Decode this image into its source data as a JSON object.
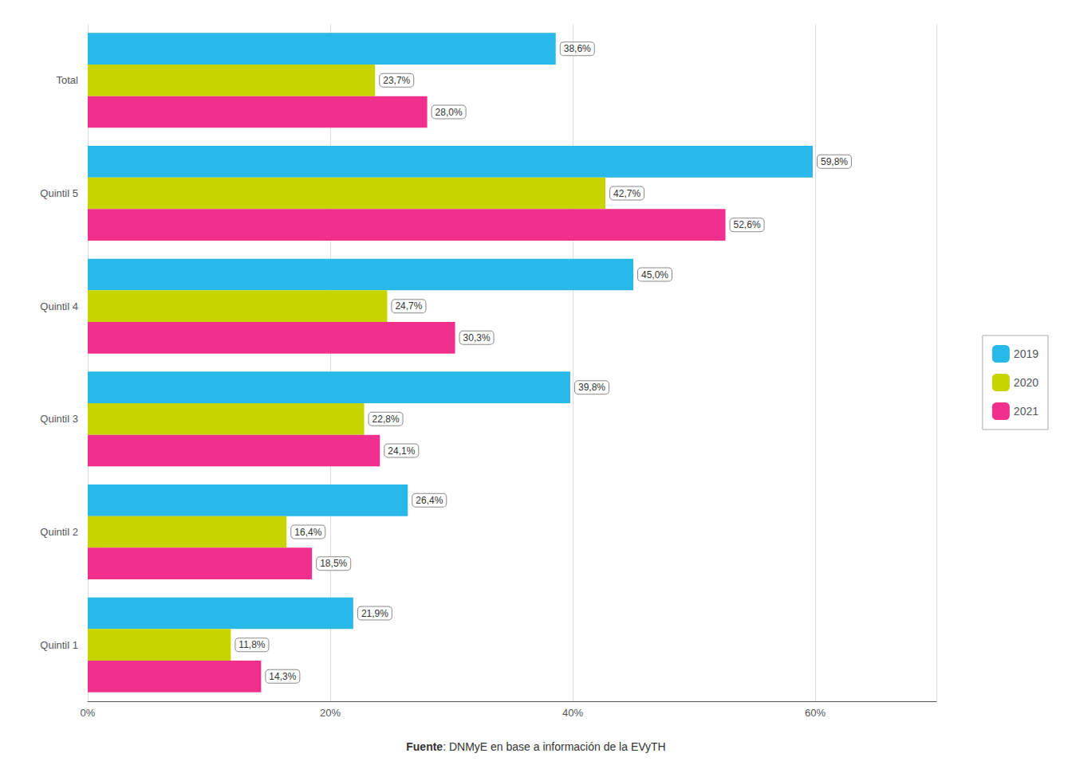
{
  "chart_data": {
    "type": "bar",
    "orientation": "horizontal",
    "categories": [
      "Total",
      "Quintil 5",
      "Quintil 4",
      "Quintil 3",
      "Quintil 2",
      "Quintil 1"
    ],
    "series": [
      {
        "name": "2019",
        "color": "#29B9E8",
        "values": [
          38.6,
          59.8,
          45.0,
          39.8,
          26.4,
          21.9
        ],
        "value_labels": [
          "38,6%",
          "59,8%",
          "45,0%",
          "39,8%",
          "26,4%",
          "21,9%"
        ]
      },
      {
        "name": "2020",
        "color": "#C8D400",
        "values": [
          23.7,
          42.7,
          24.7,
          22.8,
          16.4,
          11.8
        ],
        "value_labels": [
          "23,7%",
          "42,7%",
          "24,7%",
          "22,8%",
          "16,4%",
          "11,8%"
        ]
      },
      {
        "name": "2021",
        "color": "#F0308C",
        "values": [
          28.0,
          52.6,
          30.3,
          24.1,
          18.5,
          14.3
        ],
        "value_labels": [
          "28,0%",
          "52,6%",
          "30,3%",
          "24,1%",
          "18,5%",
          "14,3%"
        ]
      }
    ],
    "xlim": [
      0,
      70
    ],
    "xticks": [
      {
        "value": 0,
        "label": "0%"
      },
      {
        "value": 20,
        "label": "20%"
      },
      {
        "value": 40,
        "label": "40%"
      },
      {
        "value": 60,
        "label": "60%"
      }
    ],
    "grid": true,
    "legend": "right",
    "data_labels": true,
    "annotations": [
      {
        "text": "Fuente: DNMyE en base a información de la EVyTH",
        "bold": "Fuente"
      }
    ]
  }
}
